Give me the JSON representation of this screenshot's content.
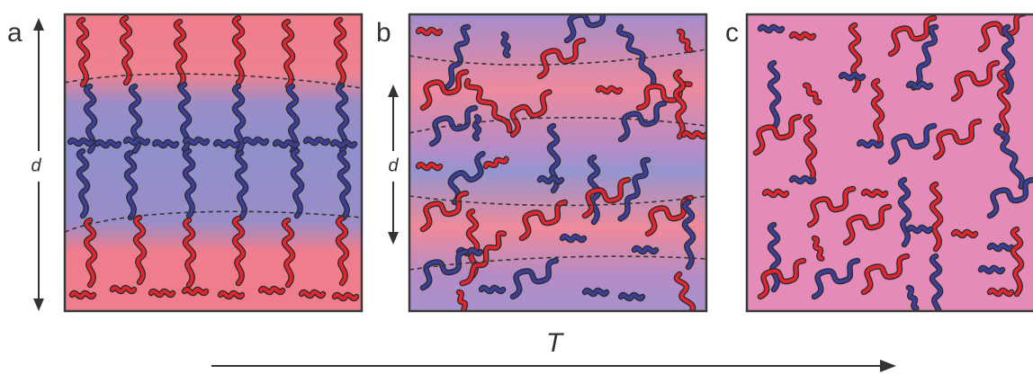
{
  "panels": [
    {
      "label": "a",
      "dimension_label": "d"
    },
    {
      "label": "b",
      "dimension_label": "d"
    },
    {
      "label": "c"
    }
  ],
  "axis": {
    "label": "T"
  }
}
